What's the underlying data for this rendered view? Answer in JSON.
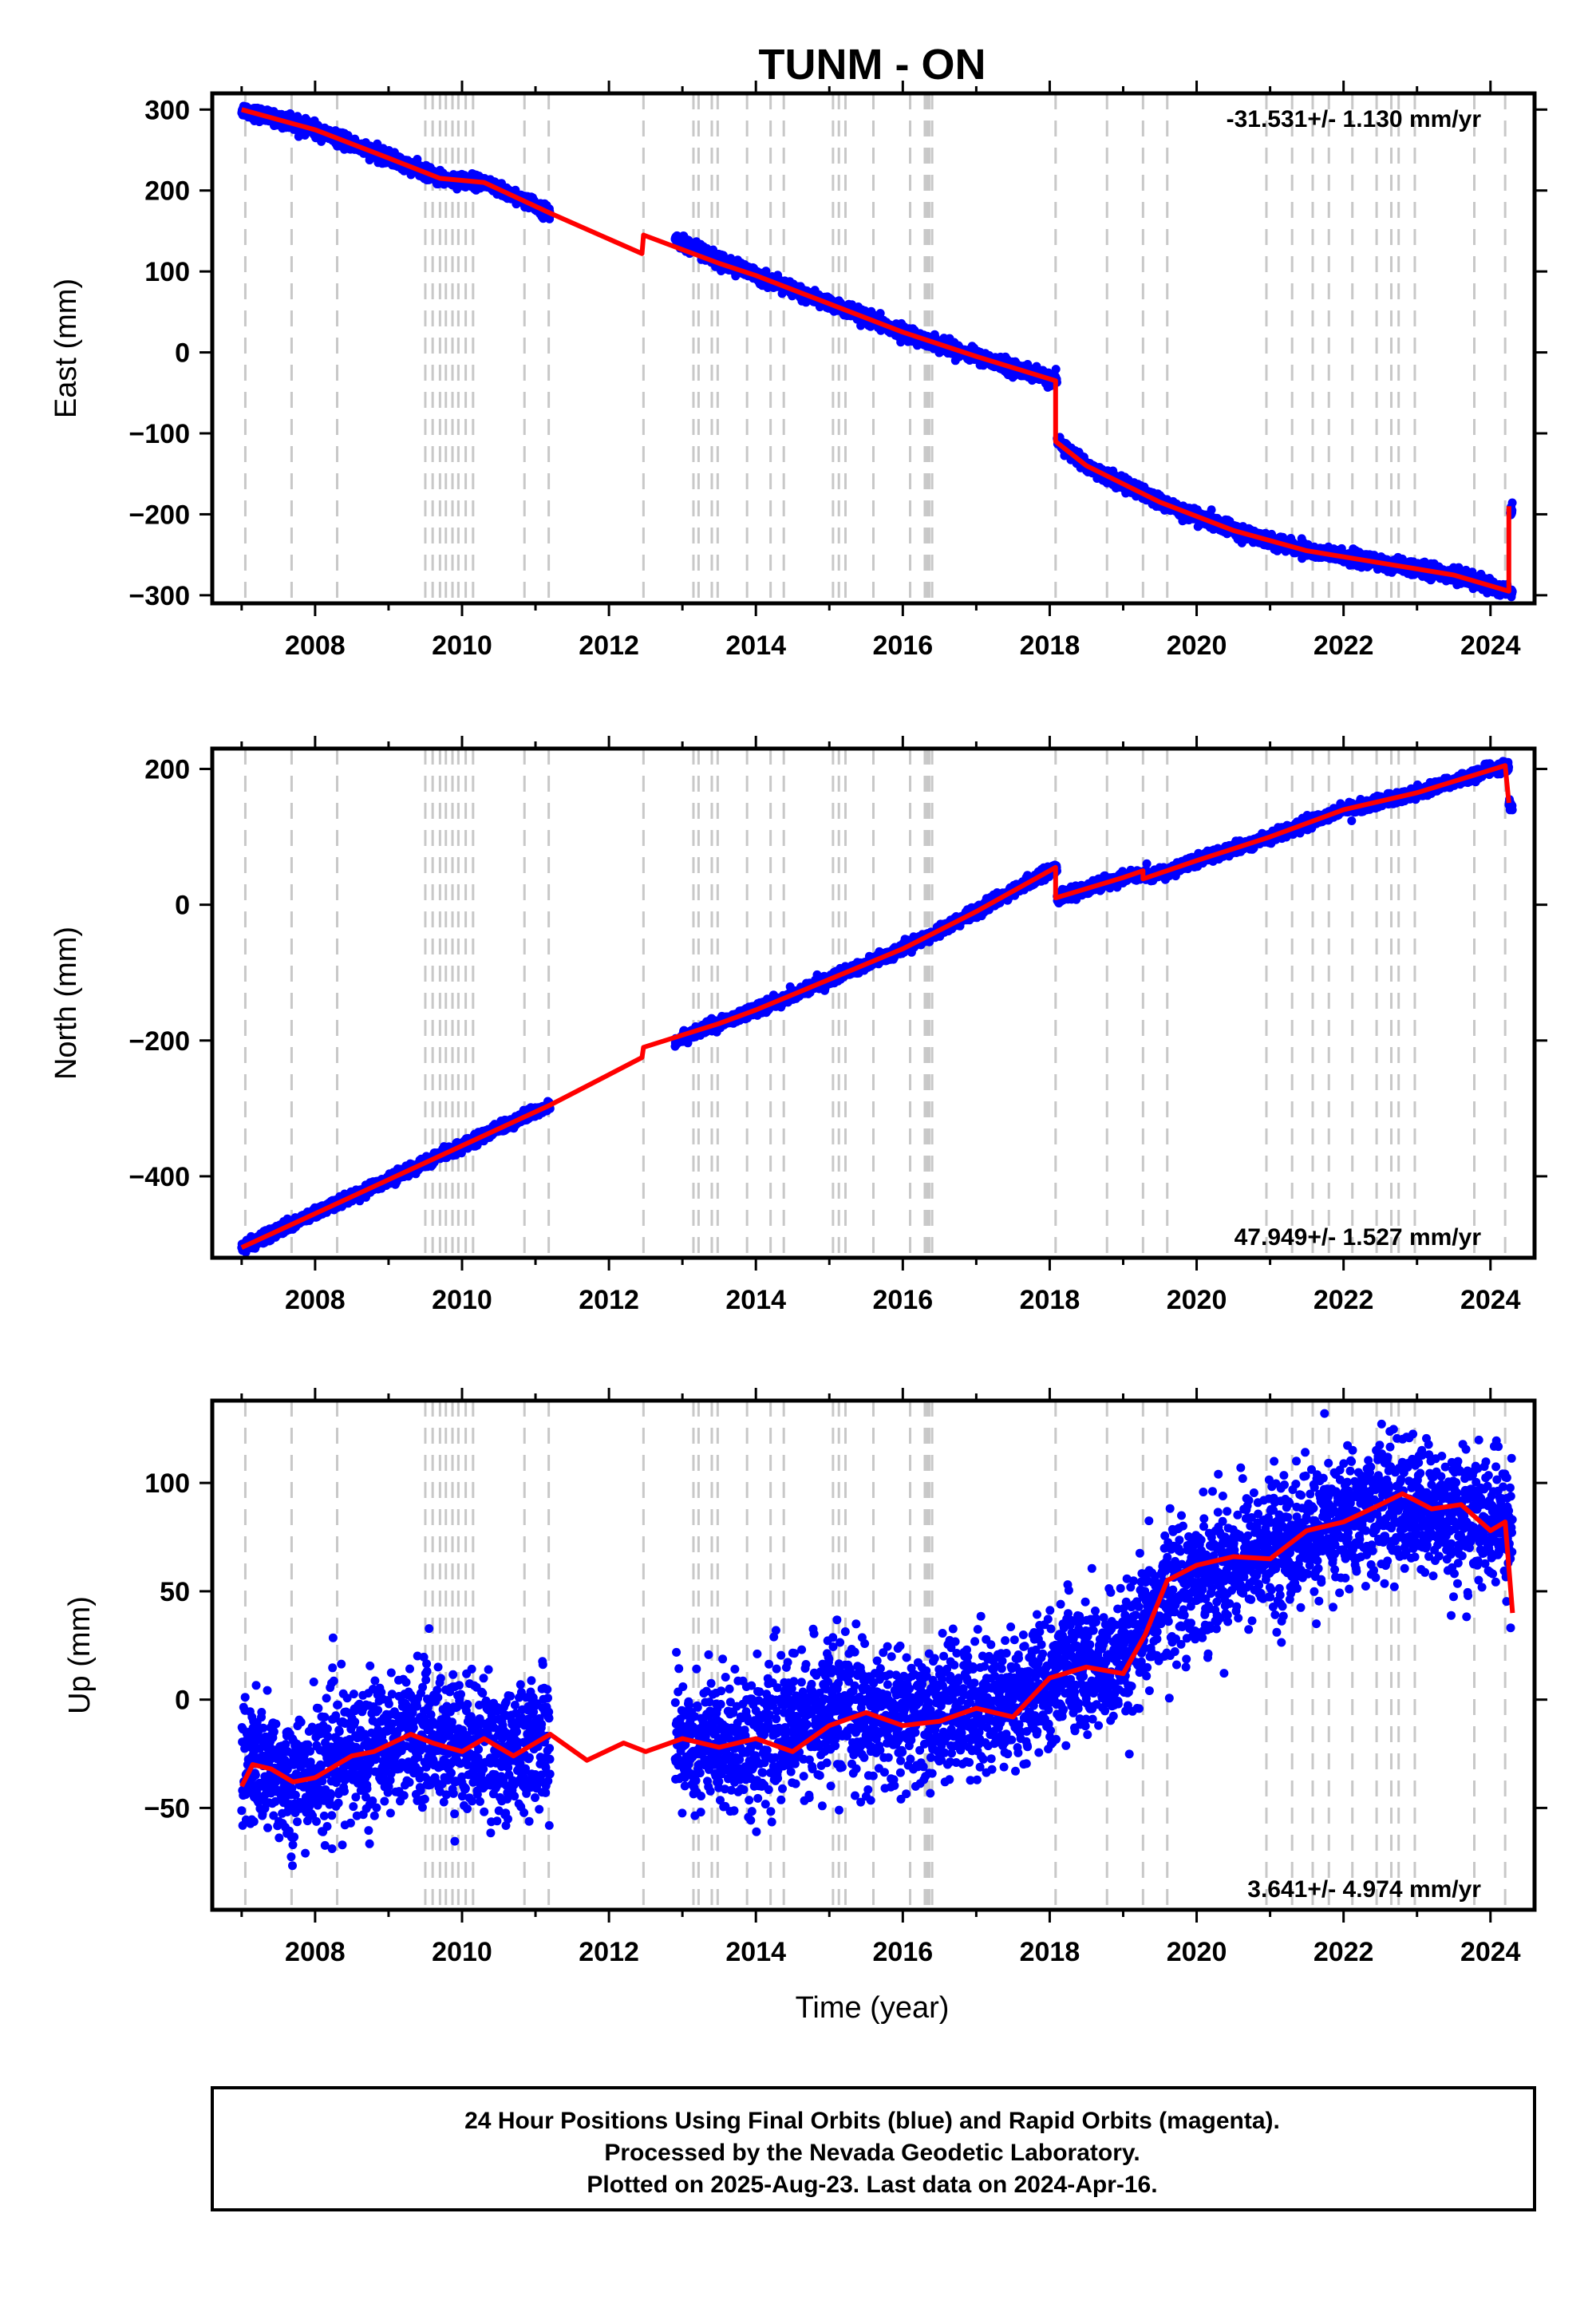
{
  "title": "TUNM - ON",
  "xlabel": "Time (year)",
  "footer": {
    "line1": "24 Hour Positions Using Final Orbits (blue) and Rapid Orbits (magenta).",
    "line2": "Processed by the Nevada Geodetic Laboratory.",
    "line3": "Plotted on 2025-Aug-23. Last data on 2024-Apr-16."
  },
  "colors": {
    "data_points": "#0000ff",
    "model_fit": "#ff0000",
    "event_lines": "#c8c8c8"
  },
  "events": [
    2007.05,
    2007.68,
    2008.3,
    2009.5,
    2009.6,
    2009.7,
    2009.78,
    2009.87,
    2009.95,
    2010.05,
    2010.15,
    2010.85,
    2011.18,
    2012.47,
    2013.15,
    2013.22,
    2013.4,
    2013.48,
    2013.88,
    2014.2,
    2014.38,
    2015.05,
    2015.13,
    2015.22,
    2015.6,
    2016.1,
    2016.3,
    2016.33,
    2016.36,
    2016.4,
    2018.08,
    2018.78,
    2019.27,
    2019.6,
    2020.95,
    2021.3,
    2021.58,
    2021.8,
    2022.12,
    2022.45,
    2022.65,
    2022.75,
    2022.97,
    2023.78,
    2024.2
  ],
  "chart_data": [
    {
      "type": "scatter",
      "panel": "east",
      "ylabel": "East (mm)",
      "xlim": [
        2006.6,
        2024.6
      ],
      "ylim": [
        -310,
        320
      ],
      "xticks": [
        2008,
        2010,
        2012,
        2014,
        2016,
        2018,
        2020,
        2022,
        2024
      ],
      "yticks": [
        300,
        200,
        100,
        0,
        -100,
        -200,
        -300
      ],
      "rate": "-31.531+/- 1.130 mm/yr",
      "rate_position": "top-right",
      "data_segments": [
        {
          "start": 2007.0,
          "end": 2011.2,
          "trend": [
            [
              2007.0,
              300
            ],
            [
              2008.0,
              275
            ],
            [
              2009.0,
              240
            ],
            [
              2009.7,
              215
            ],
            [
              2010.3,
              210
            ],
            [
              2011.2,
              172
            ]
          ],
          "scatter": 4
        },
        {
          "start": 2012.9,
          "end": 2018.1,
          "trend": [
            [
              2012.9,
              140
            ],
            [
              2013.5,
              115
            ],
            [
              2014.0,
              95
            ],
            [
              2015.0,
              60
            ],
            [
              2016.0,
              25
            ],
            [
              2017.0,
              -5
            ],
            [
              2018.08,
              -35
            ]
          ],
          "scatter": 4
        },
        {
          "start": 2018.1,
          "end": 2024.3,
          "trend": [
            [
              2018.1,
              -110
            ],
            [
              2018.5,
              -140
            ],
            [
              2019.5,
              -185
            ],
            [
              2020.5,
              -220
            ],
            [
              2021.5,
              -245
            ],
            [
              2022.5,
              -260
            ],
            [
              2023.5,
              -275
            ],
            [
              2024.25,
              -295
            ]
          ],
          "scatter": 4
        },
        {
          "start": 2024.27,
          "end": 2024.3,
          "trend": [
            [
              2024.27,
              -200
            ],
            [
              2024.3,
              -190
            ]
          ],
          "scatter": 4
        }
      ],
      "model": [
        [
          2007.0,
          300
        ],
        [
          2008.0,
          275
        ],
        [
          2009.0,
          240
        ],
        [
          2009.7,
          215
        ],
        [
          2010.3,
          210
        ],
        [
          2011.2,
          172
        ],
        [
          2012.45,
          122
        ],
        [
          2012.47,
          145
        ],
        [
          2013.5,
          110
        ],
        [
          2014.0,
          95
        ],
        [
          2015.0,
          60
        ],
        [
          2016.0,
          25
        ],
        [
          2017.0,
          -5
        ],
        [
          2018.08,
          -35
        ],
        [
          2018.08,
          -110
        ],
        [
          2018.5,
          -140
        ],
        [
          2019.5,
          -185
        ],
        [
          2020.5,
          -220
        ],
        [
          2021.5,
          -245
        ],
        [
          2022.5,
          -260
        ],
        [
          2023.5,
          -275
        ],
        [
          2024.25,
          -295
        ],
        [
          2024.25,
          -190
        ]
      ]
    },
    {
      "type": "scatter",
      "panel": "north",
      "ylabel": "North (mm)",
      "xlim": [
        2006.6,
        2024.6
      ],
      "ylim": [
        -520,
        230
      ],
      "xticks": [
        2008,
        2010,
        2012,
        2014,
        2016,
        2018,
        2020,
        2022,
        2024
      ],
      "yticks": [
        200,
        0,
        -200,
        -400
      ],
      "rate": "47.949+/- 1.527 mm/yr",
      "rate_position": "bottom-right",
      "data_segments": [
        {
          "start": 2007.0,
          "end": 2011.2,
          "trend": [
            [
              2007.0,
              -505
            ],
            [
              2008.0,
              -455
            ],
            [
              2009.0,
              -405
            ],
            [
              2010.0,
              -355
            ],
            [
              2011.2,
              -295
            ]
          ],
          "scatter": 4
        },
        {
          "start": 2012.9,
          "end": 2018.1,
          "trend": [
            [
              2012.9,
              -200
            ],
            [
              2013.5,
              -175
            ],
            [
              2014.0,
              -155
            ],
            [
              2015.0,
              -110
            ],
            [
              2016.0,
              -65
            ],
            [
              2017.0,
              -10
            ],
            [
              2018.08,
              55
            ]
          ],
          "scatter": 4
        },
        {
          "start": 2018.1,
          "end": 2024.25,
          "trend": [
            [
              2018.1,
              10
            ],
            [
              2019.0,
              40
            ],
            [
              2019.5,
              45
            ],
            [
              2020.0,
              65
            ],
            [
              2021.0,
              100
            ],
            [
              2022.0,
              140
            ],
            [
              2023.0,
              165
            ],
            [
              2024.2,
              205
            ]
          ],
          "scatter": 4
        },
        {
          "start": 2024.25,
          "end": 2024.3,
          "trend": [
            [
              2024.25,
              150
            ],
            [
              2024.3,
              145
            ]
          ],
          "scatter": 4
        }
      ],
      "model": [
        [
          2007.0,
          -505
        ],
        [
          2008.0,
          -455
        ],
        [
          2009.0,
          -405
        ],
        [
          2010.0,
          -355
        ],
        [
          2011.2,
          -295
        ],
        [
          2012.45,
          -225
        ],
        [
          2012.47,
          -210
        ],
        [
          2013.5,
          -175
        ],
        [
          2014.0,
          -155
        ],
        [
          2015.0,
          -110
        ],
        [
          2016.0,
          -65
        ],
        [
          2017.0,
          -10
        ],
        [
          2018.08,
          55
        ],
        [
          2018.08,
          10
        ],
        [
          2019.0,
          40
        ],
        [
          2019.27,
          50
        ],
        [
          2019.27,
          38
        ],
        [
          2020.0,
          65
        ],
        [
          2021.0,
          100
        ],
        [
          2022.0,
          140
        ],
        [
          2023.0,
          165
        ],
        [
          2024.2,
          205
        ],
        [
          2024.25,
          150
        ]
      ]
    },
    {
      "type": "scatter",
      "panel": "up",
      "ylabel": "Up (mm)",
      "xlim": [
        2006.6,
        2024.6
      ],
      "ylim": [
        -97,
        138
      ],
      "xticks": [
        2008,
        2010,
        2012,
        2014,
        2016,
        2018,
        2020,
        2022,
        2024
      ],
      "yticks": [
        100,
        50,
        0,
        -50
      ],
      "rate": "3.641+/- 4.974 mm/yr",
      "rate_position": "bottom-right",
      "data_segments": [
        {
          "start": 2007.0,
          "end": 2011.2,
          "trend": [
            [
              2007.0,
              -30
            ],
            [
              2007.7,
              -37
            ],
            [
              2008.5,
              -25
            ],
            [
              2009.3,
              -15
            ],
            [
              2010.0,
              -20
            ],
            [
              2010.7,
              -25
            ],
            [
              2011.2,
              -15
            ]
          ],
          "scatter": 15
        },
        {
          "start": 2012.9,
          "end": 2018.1,
          "trend": [
            [
              2012.9,
              -20
            ],
            [
              2013.5,
              -20
            ],
            [
              2014.0,
              -20
            ],
            [
              2015.0,
              -5
            ],
            [
              2016.0,
              -10
            ],
            [
              2017.0,
              -2
            ],
            [
              2018.0,
              5
            ]
          ],
          "scatter": 15
        },
        {
          "start": 2018.1,
          "end": 2024.3,
          "trend": [
            [
              2018.1,
              15
            ],
            [
              2019.0,
              15
            ],
            [
              2019.6,
              50
            ],
            [
              2020.5,
              65
            ],
            [
              2021.5,
              75
            ],
            [
              2022.5,
              90
            ],
            [
              2023.5,
              85
            ],
            [
              2024.2,
              80
            ]
          ],
          "scatter": 15
        }
      ],
      "model": [
        [
          2007.0,
          -40
        ],
        [
          2007.15,
          -30
        ],
        [
          2007.4,
          -32
        ],
        [
          2007.7,
          -38
        ],
        [
          2008.0,
          -36
        ],
        [
          2008.3,
          -30
        ],
        [
          2008.5,
          -26
        ],
        [
          2008.8,
          -24
        ],
        [
          2009.3,
          -16
        ],
        [
          2009.6,
          -20
        ],
        [
          2010.0,
          -24
        ],
        [
          2010.3,
          -18
        ],
        [
          2010.7,
          -26
        ],
        [
          2011.2,
          -16
        ],
        [
          2011.7,
          -28
        ],
        [
          2012.2,
          -20
        ],
        [
          2012.5,
          -24
        ],
        [
          2013.0,
          -18
        ],
        [
          2013.5,
          -22
        ],
        [
          2014.0,
          -18
        ],
        [
          2014.5,
          -24
        ],
        [
          2015.0,
          -12
        ],
        [
          2015.5,
          -6
        ],
        [
          2016.0,
          -12
        ],
        [
          2016.5,
          -10
        ],
        [
          2017.0,
          -4
        ],
        [
          2017.5,
          -8
        ],
        [
          2018.0,
          10
        ],
        [
          2018.5,
          15
        ],
        [
          2019.0,
          12
        ],
        [
          2019.3,
          30
        ],
        [
          2019.6,
          55
        ],
        [
          2020.0,
          62
        ],
        [
          2020.5,
          66
        ],
        [
          2021.0,
          65
        ],
        [
          2021.5,
          78
        ],
        [
          2022.0,
          82
        ],
        [
          2022.5,
          90
        ],
        [
          2022.8,
          95
        ],
        [
          2023.2,
          88
        ],
        [
          2023.6,
          90
        ],
        [
          2024.0,
          78
        ],
        [
          2024.2,
          82
        ],
        [
          2024.3,
          40
        ]
      ]
    }
  ]
}
